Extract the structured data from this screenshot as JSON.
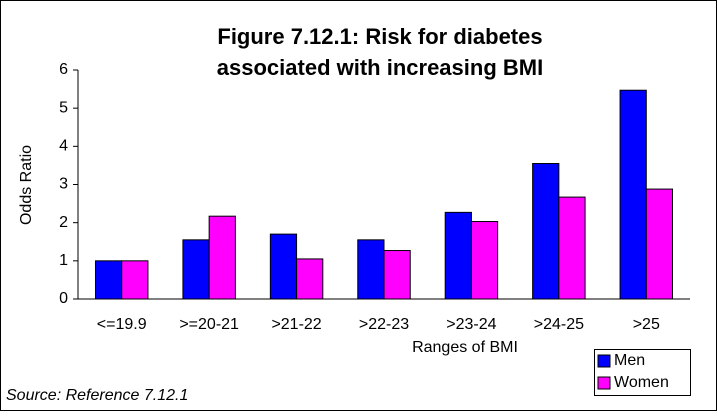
{
  "chart_data": {
    "type": "bar",
    "title": [
      "Figure 7.12.1: Risk for diabetes",
      "associated with increasing BMI"
    ],
    "y_label": "Odds Ratio",
    "x_label": "Ranges of BMI",
    "source": "Source: Reference 7.12.1",
    "categories": [
      "<=19.9",
      ">=20-21",
      ">21-22",
      ">22-23",
      ">23-24",
      ">24-25",
      ">25"
    ],
    "series": [
      {
        "name": "Men",
        "color": "#0000ff",
        "values": [
          1.0,
          1.55,
          1.7,
          1.55,
          2.27,
          3.55,
          5.47
        ]
      },
      {
        "name": "Women",
        "color": "#ff00ff",
        "values": [
          1.0,
          2.17,
          1.05,
          1.27,
          2.03,
          2.67,
          2.88
        ]
      }
    ],
    "ylim": [
      0,
      6
    ],
    "yticks": [
      0,
      1,
      2,
      3,
      4,
      5,
      6
    ],
    "grid": false
  }
}
